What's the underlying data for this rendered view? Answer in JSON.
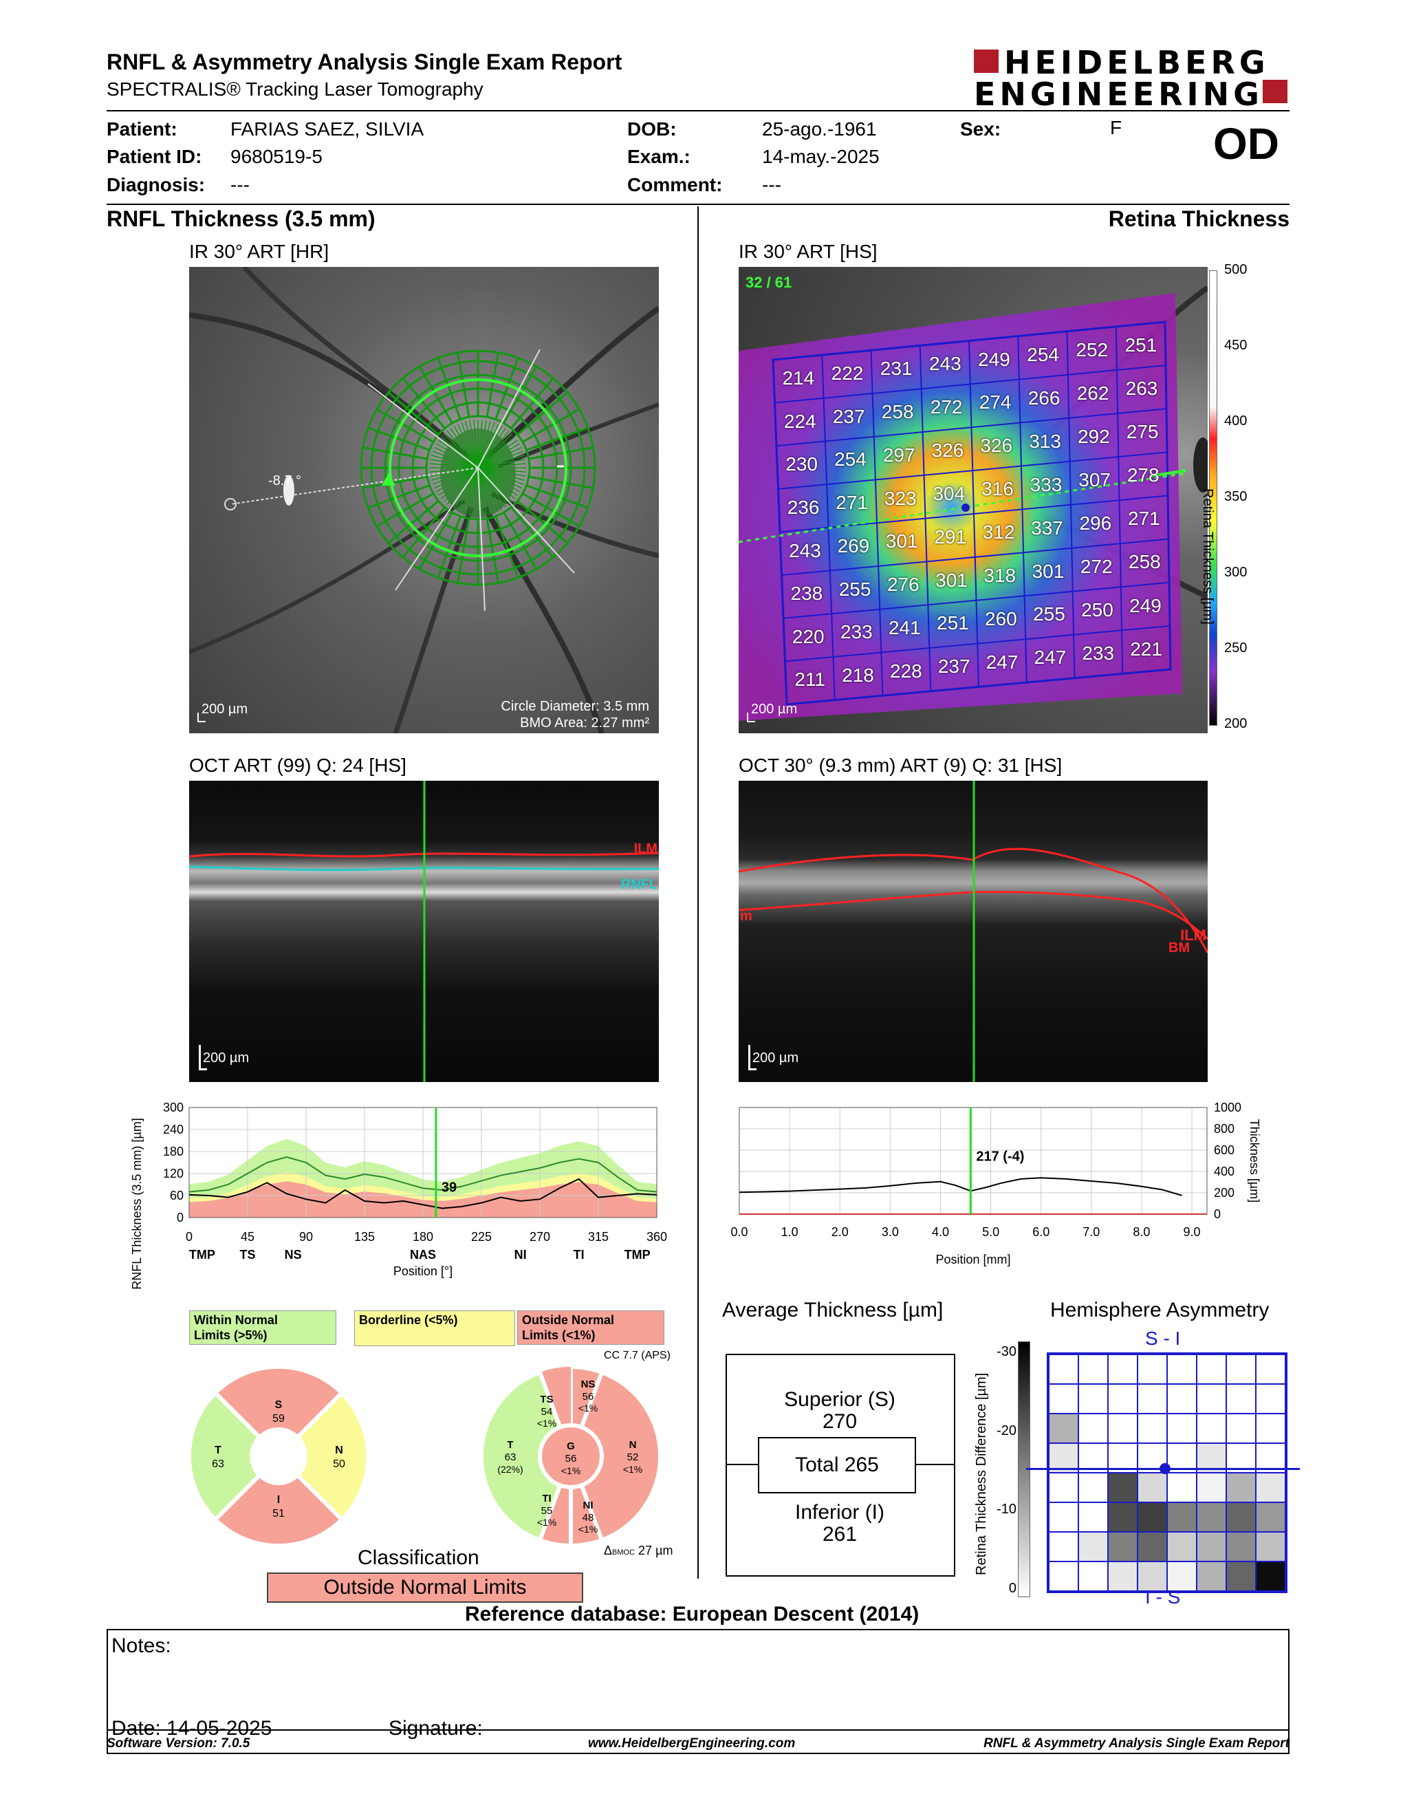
{
  "report": {
    "title": "RNFL & Asymmetry Analysis Single Exam Report",
    "subtitle": "SPECTRALIS® Tracking Laser Tomography",
    "logo_line1": "HEIDELBERG",
    "logo_line2": "ENGINEERING"
  },
  "patient": {
    "name_label": "Patient:",
    "name": "FARIAS SAEZ, SILVIA",
    "id_label": "Patient ID:",
    "id": "9680519-5",
    "diagnosis_label": "Diagnosis:",
    "diagnosis": "---",
    "dob_label": "DOB:",
    "dob": "25-ago.-1961",
    "exam_label": "Exam.:",
    "exam": "14-may.-2025",
    "comment_label": "Comment:",
    "comment": "---",
    "sex_label": "Sex:",
    "sex": "F",
    "eye": "OD"
  },
  "left": {
    "section_title": "RNFL Thickness (3.5 mm)",
    "ir_title": "IR 30° ART [HR]",
    "ir_angle": "-8.7 °",
    "ir_scale": "200 µm",
    "circle_diameter": "Circle Diameter: 3.5 mm",
    "bmo_area": "BMO Area: 2.27 mm²",
    "oct_title": "OCT ART (99) Q: 24 [HS]",
    "oct_scale": "200 µm",
    "ilm_label": "ILM",
    "rnfl_label": "RNFL"
  },
  "right": {
    "section_title": "Retina Thickness",
    "ir_title": "IR 30° ART [HS]",
    "ir_counter": "32 / 61",
    "ir_scale": "200 µm",
    "colorbar_label": "Retina Thickness [µm]",
    "colorbar_ticks": [
      "500",
      "450",
      "400",
      "350",
      "300",
      "250",
      "200"
    ],
    "grid": [
      [
        "214",
        "222",
        "231",
        "243",
        "249",
        "254",
        "252",
        "251"
      ],
      [
        "224",
        "237",
        "258",
        "272",
        "274",
        "266",
        "262",
        "263"
      ],
      [
        "230",
        "254",
        "297",
        "326",
        "326",
        "313",
        "292",
        "275"
      ],
      [
        "236",
        "271",
        "323",
        "304",
        "316",
        "333",
        "307",
        "278"
      ],
      [
        "243",
        "269",
        "301",
        "291",
        "312",
        "337",
        "296",
        "271"
      ],
      [
        "238",
        "255",
        "276",
        "301",
        "318",
        "301",
        "272",
        "258"
      ],
      [
        "220",
        "233",
        "241",
        "251",
        "260",
        "255",
        "250",
        "249"
      ],
      [
        "211",
        "218",
        "228",
        "237",
        "247",
        "247",
        "233",
        "221"
      ]
    ],
    "oct_title": "OCT 30° (9.3 mm) ART (9) Q: 31 [HS]",
    "oct_scale": "200 µm",
    "ilm_label": "ILM",
    "bm_label": "BM",
    "m_label": "m"
  },
  "chart_data": [
    {
      "type": "line",
      "ylabel": "RNFL Thickness (3.5 mm) [µm]",
      "xlabel": "Position [°]",
      "x_ticks": [
        0,
        45,
        90,
        135,
        180,
        225,
        270,
        315,
        360
      ],
      "y_ticks": [
        0,
        60,
        120,
        180,
        240,
        300
      ],
      "xlim": [
        0,
        360
      ],
      "ylim": [
        0,
        300
      ],
      "sector_labels": [
        {
          "x": 10,
          "label": "TMP"
        },
        {
          "x": 45,
          "label": "TS"
        },
        {
          "x": 80,
          "label": "NS"
        },
        {
          "x": 180,
          "label": "NAS"
        },
        {
          "x": 255,
          "label": "NI"
        },
        {
          "x": 300,
          "label": "TI"
        },
        {
          "x": 345,
          "label": "TMP"
        }
      ],
      "cursor_x": 190,
      "cursor_value": "39",
      "series": [
        {
          "values_x": [
            0,
            15,
            30,
            45,
            60,
            75,
            90,
            105,
            120,
            135,
            150,
            165,
            180,
            195,
            210,
            225,
            240,
            255,
            270,
            285,
            300,
            315,
            330,
            345,
            360
          ],
          "values": [
            62,
            60,
            55,
            70,
            95,
            65,
            50,
            40,
            75,
            45,
            40,
            45,
            35,
            25,
            30,
            40,
            55,
            45,
            50,
            80,
            105,
            55,
            60,
            65,
            62
          ]
        },
        {
          "values_x": [
            0,
            15,
            30,
            45,
            60,
            75,
            90,
            105,
            120,
            135,
            150,
            165,
            180,
            195,
            210,
            225,
            240,
            255,
            270,
            285,
            300,
            315,
            330,
            345,
            360
          ],
          "values": [
            70,
            75,
            90,
            120,
            150,
            165,
            150,
            115,
            105,
            118,
            110,
            95,
            80,
            75,
            85,
            100,
            115,
            125,
            135,
            150,
            160,
            150,
            110,
            75,
            70
          ]
        }
      ]
    },
    {
      "type": "line",
      "ylabel": "Thickness [µm]",
      "xlabel": "Position [mm]",
      "x_ticks": [
        "0.0",
        "1.0",
        "2.0",
        "3.0",
        "4.0",
        "5.0",
        "6.0",
        "7.0",
        "8.0",
        "9.0"
      ],
      "y_ticks": [
        0,
        200,
        400,
        600,
        800,
        1000
      ],
      "xlim": [
        0,
        9.3
      ],
      "ylim": [
        0,
        1000
      ],
      "cursor_x": 4.6,
      "cursor_value": "217 (-4)",
      "series": [
        {
          "values_x": [
            0.0,
            0.5,
            1.0,
            1.5,
            2.0,
            2.5,
            3.0,
            3.5,
            4.0,
            4.3,
            4.6,
            4.9,
            5.2,
            5.6,
            6.0,
            6.5,
            7.0,
            7.5,
            8.0,
            8.4,
            8.8
          ],
          "values": [
            205,
            210,
            215,
            225,
            235,
            245,
            265,
            290,
            305,
            270,
            217,
            250,
            290,
            330,
            340,
            330,
            310,
            290,
            260,
            230,
            175
          ]
        }
      ]
    }
  ],
  "legend": {
    "within": "Within Normal Limits (>5%)",
    "within_l1": "Within Normal",
    "within_l2": "Limits (>5%)",
    "borderline": "Borderline (<5%)",
    "outside_l1": "Outside Normal",
    "outside_l2": "Limits (<1%)"
  },
  "sectors4": {
    "S": {
      "label": "S",
      "value": "59"
    },
    "T": {
      "label": "T",
      "value": "63"
    },
    "N": {
      "label": "N",
      "value": "50"
    },
    "I": {
      "label": "I",
      "value": "51"
    }
  },
  "sectors6": {
    "cc": "CC 7.7 (APS)",
    "TS": {
      "label": "TS",
      "value": "54",
      "pct": "<1%"
    },
    "NS": {
      "label": "NS",
      "value": "56",
      "pct": "<1%"
    },
    "T": {
      "label": "T",
      "value": "63",
      "pct": "(22%)"
    },
    "G": {
      "label": "G",
      "value": "56",
      "pct": "<1%"
    },
    "N": {
      "label": "N",
      "value": "52",
      "pct": "<1%"
    },
    "TI": {
      "label": "TI",
      "value": "55",
      "pct": "<1%"
    },
    "NI": {
      "label": "NI",
      "value": "48",
      "pct": "<1%"
    },
    "bmo": "Δ",
    "bmo_sub": "BMOC",
    "bmo_val": "27 µm"
  },
  "classification": {
    "title": "Classification",
    "value": "Outside Normal Limits"
  },
  "average": {
    "title": "Average Thickness [µm]",
    "superior_label": "Superior (S)",
    "superior_value": "270",
    "total": "Total 265",
    "inferior_label": "Inferior (I)",
    "inferior_value": "261"
  },
  "asymmetry": {
    "title": "Hemisphere Asymmetry",
    "top_label": "S - I",
    "bottom_label": "I - S",
    "axis_label": "Retina Thickness Difference [µm]",
    "axis_ticks": [
      "-30",
      "-20",
      "-10",
      "0"
    ],
    "cells": [
      [
        0,
        0,
        0,
        0,
        0,
        0,
        0,
        0
      ],
      [
        0,
        0,
        0,
        0,
        0,
        0,
        0,
        0
      ],
      [
        0.3,
        0,
        0,
        0,
        0,
        0,
        0,
        0
      ],
      [
        0.1,
        0,
        0,
        0,
        0,
        0.1,
        0,
        0
      ],
      [
        0,
        0,
        0.7,
        0.15,
        0,
        0.05,
        0.3,
        0.1
      ],
      [
        0,
        0,
        0.7,
        0.75,
        0.5,
        0.45,
        0.6,
        0.4
      ],
      [
        0,
        0.1,
        0.5,
        0.6,
        0.2,
        0.3,
        0.45,
        0.25
      ],
      [
        0,
        0,
        0.1,
        0.15,
        0.05,
        0.3,
        0.6,
        0.95
      ]
    ]
  },
  "reference": "Reference database: European Descent (2014)",
  "notes": {
    "notes_label": "Notes:",
    "date_label": "Date: 14-05-2025",
    "signature_label": "Signature:"
  },
  "footer": {
    "software": "Software Version: 7.0.5",
    "url": "www.HeidelbergEngineering.com",
    "report": "RNFL & Asymmetry Analysis Single Exam Report"
  },
  "colors": {
    "green": "#c9f5a0",
    "yellow": "#fafa98",
    "red": "#f6a297",
    "cursor": "#22dd22",
    "blue": "#1a1acc"
  }
}
